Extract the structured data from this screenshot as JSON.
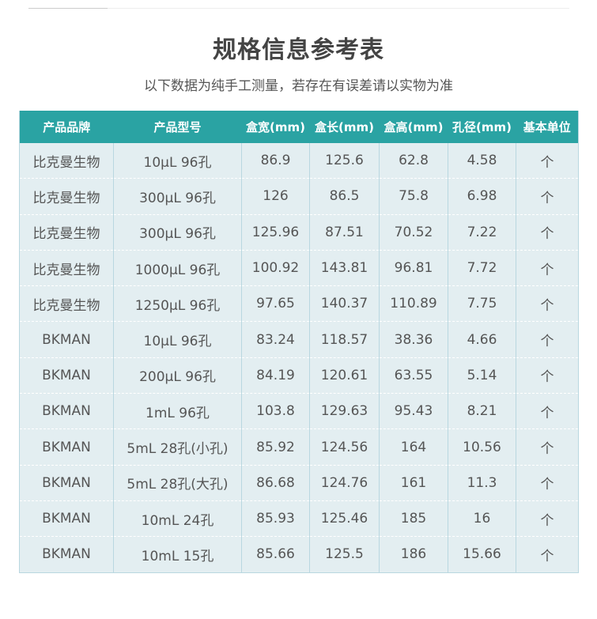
{
  "title": "规格信息参考表",
  "subtitle": "以下数据为纯手工测量，若存在有误差请以实物为准",
  "headers": [
    "产品品牌",
    "产品型号",
    "盒宽(mm)",
    "盒长(mm)",
    "盒高(mm)",
    "孔径(mm)",
    "基本单位"
  ],
  "rows": [
    [
      "比克曼生物",
      "10μL 96孔",
      "86.9",
      "125.6",
      "62.8",
      "4.58",
      "个"
    ],
    [
      "比克曼生物",
      "300μL 96孔",
      "126",
      "86.5",
      "75.8",
      "6.98",
      "个"
    ],
    [
      "比克曼生物",
      "300μL 96孔",
      "125.96",
      "87.51",
      "70.52",
      "7.22",
      "个"
    ],
    [
      "比克曼生物",
      "1000μL 96孔",
      "100.92",
      "143.81",
      "96.81",
      "7.72",
      "个"
    ],
    [
      "比克曼生物",
      "1250μL 96孔",
      "97.65",
      "140.37",
      "110.89",
      "7.75",
      "个"
    ],
    [
      "BKMAN",
      "10μL 96孔",
      "83.24",
      "118.57",
      "38.36",
      "4.66",
      "个"
    ],
    [
      "BKMAN",
      "200μL 96孔",
      "84.19",
      "120.61",
      "63.55",
      "5.14",
      "个"
    ],
    [
      "BKMAN",
      "1mL 96孔",
      "103.8",
      "129.63",
      "95.43",
      "8.21",
      "个"
    ],
    [
      "BKMAN",
      "5mL 28孔(小孔)",
      "85.92",
      "124.56",
      "164",
      "10.56",
      "个"
    ],
    [
      "BKMAN",
      "5mL 28孔(大孔)",
      "86.68",
      "124.76",
      "161",
      "11.3",
      "个"
    ],
    [
      "BKMAN",
      "10mL 24孔",
      "85.93",
      "125.46",
      "185",
      "16",
      "个"
    ],
    [
      "BKMAN",
      "10mL 15孔",
      "85.66",
      "125.5",
      "186",
      "15.66",
      "个"
    ]
  ],
  "colors": {
    "header": "#2aa3a3",
    "body": "#e3eef1"
  }
}
